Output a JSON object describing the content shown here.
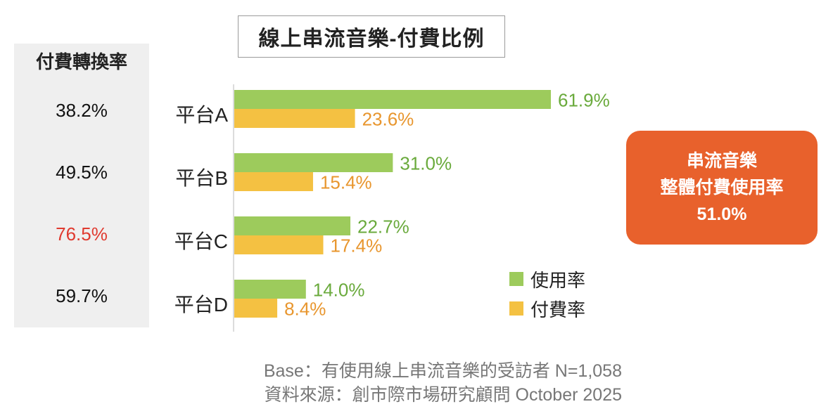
{
  "title": "線上串流音樂-付費比例",
  "conversion": {
    "header": "付費轉換率",
    "values": [
      "38.2%",
      "49.5%",
      "76.5%",
      "59.7%"
    ],
    "highlight_color": "#e03a2f"
  },
  "legend": {
    "usage": "使用率",
    "paid": "付費率"
  },
  "callout": {
    "line1": "串流音樂",
    "line2": "整體付費使用率",
    "value": "51.0%",
    "color": "#e8612c"
  },
  "footer": {
    "base": "Base：有使用線上串流音樂的受訪者 N=1,058",
    "source": "資料來源：創市際市場研究顧問 October 2025"
  },
  "chart_data": {
    "type": "bar",
    "orientation": "horizontal",
    "categories": [
      "平台A",
      "平台B",
      "平台C",
      "平台D"
    ],
    "series": [
      {
        "name": "使用率",
        "values": [
          61.9,
          31.0,
          22.7,
          14.0
        ],
        "labels": [
          "61.9%",
          "31.0%",
          "22.7%",
          "14.0%"
        ],
        "color": "#9dcb5c",
        "label_color": "#6aaa3c"
      },
      {
        "name": "付費率",
        "values": [
          23.6,
          15.4,
          17.4,
          8.4
        ],
        "labels": [
          "23.6%",
          "15.4%",
          "17.4%",
          "8.4%"
        ],
        "color": "#f4c142",
        "label_color": "#e8962e"
      }
    ],
    "title": "線上串流音樂-付費比例",
    "xlim": [
      0,
      100
    ],
    "grid": false,
    "legend_position": "right"
  }
}
